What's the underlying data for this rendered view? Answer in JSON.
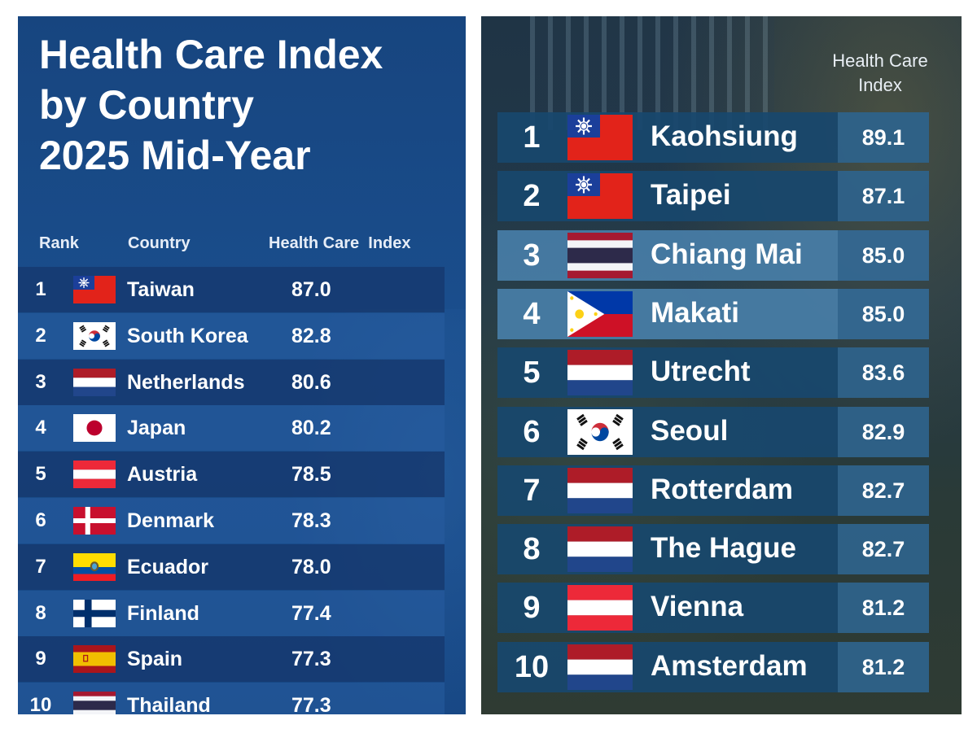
{
  "chart_data": [
    {
      "type": "table",
      "title_lines": [
        "Health Care Index",
        "by Country",
        "2025 Mid-Year"
      ],
      "columns": [
        "Rank",
        "Country",
        "Health Care",
        "Index"
      ],
      "rows": [
        {
          "rank": "1",
          "country": "Taiwan",
          "value": "87.0",
          "flag": "taiwan"
        },
        {
          "rank": "2",
          "country": "South Korea",
          "value": "82.8",
          "flag": "south-korea"
        },
        {
          "rank": "3",
          "country": "Netherlands",
          "value": "80.6",
          "flag": "netherlands"
        },
        {
          "rank": "4",
          "country": "Japan",
          "value": "80.2",
          "flag": "japan"
        },
        {
          "rank": "5",
          "country": "Austria",
          "value": "78.5",
          "flag": "austria"
        },
        {
          "rank": "6",
          "country": "Denmark",
          "value": "78.3",
          "flag": "denmark"
        },
        {
          "rank": "7",
          "country": "Ecuador",
          "value": "78.0",
          "flag": "ecuador"
        },
        {
          "rank": "8",
          "country": "Finland",
          "value": "77.4",
          "flag": "finland"
        },
        {
          "rank": "9",
          "country": "Spain",
          "value": "77.3",
          "flag": "spain"
        },
        {
          "rank": "10",
          "country": "Thailand",
          "value": "77.3",
          "flag": "thailand"
        }
      ]
    },
    {
      "type": "table",
      "header_lines": [
        "Health Care",
        "Index"
      ],
      "rows": [
        {
          "rank": "1",
          "city": "Kaohsiung",
          "value": "89.1",
          "flag": "taiwan"
        },
        {
          "rank": "2",
          "city": "Taipei",
          "value": "87.1",
          "flag": "taiwan"
        },
        {
          "rank": "3",
          "city": "Chiang Mai",
          "value": "85.0",
          "flag": "thailand"
        },
        {
          "rank": "4",
          "city": "Makati",
          "value": "85.0",
          "flag": "philippines"
        },
        {
          "rank": "5",
          "city": "Utrecht",
          "value": "83.6",
          "flag": "netherlands"
        },
        {
          "rank": "6",
          "city": "Seoul",
          "value": "82.9",
          "flag": "south-korea"
        },
        {
          "rank": "7",
          "city": "Rotterdam",
          "value": "82.7",
          "flag": "netherlands"
        },
        {
          "rank": "8",
          "city": "The Hague",
          "value": "82.7",
          "flag": "netherlands"
        },
        {
          "rank": "9",
          "city": "Vienna",
          "value": "81.2",
          "flag": "austria"
        },
        {
          "rank": "10",
          "city": "Amsterdam",
          "value": "81.2",
          "flag": "netherlands"
        }
      ]
    }
  ],
  "colors": {
    "left_background": "#1a4e8d",
    "right_value_cell": "#2e628a",
    "text": "#ffffff"
  }
}
